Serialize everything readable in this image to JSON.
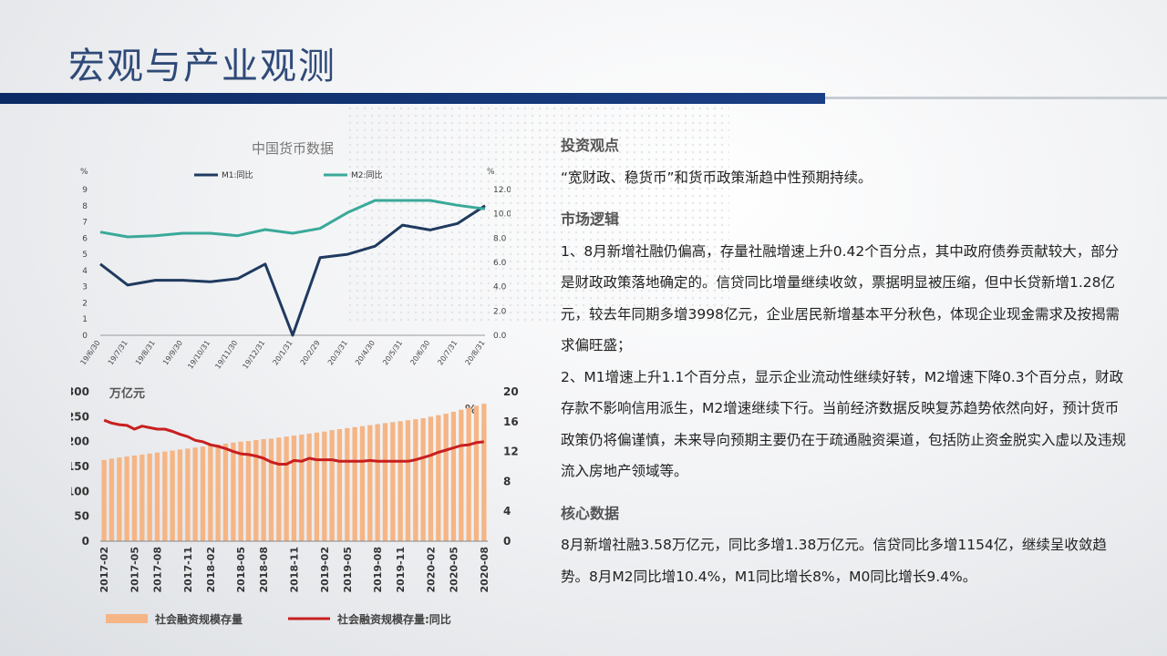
{
  "page": {
    "title": "宏观与产业观测"
  },
  "sections": [
    {
      "heading": "投资观点",
      "paragraphs": [
        "“宽财政、稳货币”和货币政策渐趋中性预期持续。"
      ]
    },
    {
      "heading": "市场逻辑",
      "paragraphs": [
        "1、8月新增社融仍偏高，存量社融增速上升0.42个百分点，其中政府债券贡献较大，部分是财政政策落地确定的。信贷同比增量继续收敛，票据明显被压缩，但中长贷新增1.28亿元，较去年同期多增3998亿元，企业居民新增基本平分秋色，体现企业现金需求及按揭需求偏旺盛；",
        "2、M1增速上升1.1个百分点，显示企业流动性继续好转，M2增速下降0.3个百分点，财政存款不影响信用派生，M2增速继续下行。当前经济数据反映复苏趋势依然向好，预计货币政策仍将偏谨慎，未来导向预期主要仍在于疏通融资渠道，包括防止资金脱实入虚以及违规流入房地产领域等。"
      ]
    },
    {
      "heading": "核心数据",
      "paragraphs": [
        "8月新增社融3.58万亿元，同比多增1.38万亿元。信贷同比多增1154亿，继续呈收敛趋势。8月M2同比增10.4%，M1同比增长8%，M0同比增长9.4%。"
      ]
    }
  ],
  "chart_data": [
    {
      "type": "line",
      "title": "中国货币数据",
      "left_unit": "%",
      "right_unit": "%",
      "categories": [
        "19/6/30",
        "19/7/31",
        "19/8/31",
        "19/9/30",
        "19/10/31",
        "19/11/30",
        "19/12/31",
        "20/1/31",
        "20/2/29",
        "20/3/31",
        "20/4/30",
        "20/5/31",
        "20/6/30",
        "20/7/31",
        "20/8/31"
      ],
      "y_left": {
        "min": 0,
        "max": 9,
        "ticks": [
          "0",
          "1",
          "2",
          "3",
          "4",
          "5",
          "6",
          "7",
          "8",
          "9"
        ]
      },
      "y_right": {
        "min": 0,
        "max": 12,
        "ticks": [
          "0.0",
          "2.0",
          "4.0",
          "6.0",
          "8.0",
          "10.0",
          "12.0"
        ]
      },
      "series": [
        {
          "name": "M1:同比",
          "axis": "left",
          "color": "#1f3a5f",
          "values": [
            4.4,
            3.1,
            3.4,
            3.4,
            3.3,
            3.5,
            4.4,
            0.0,
            4.8,
            5.0,
            5.5,
            6.8,
            6.5,
            6.9,
            8.0
          ]
        },
        {
          "name": "M2:同比",
          "axis": "right",
          "color": "#3aa99a",
          "values": [
            8.5,
            8.1,
            8.2,
            8.4,
            8.4,
            8.2,
            8.7,
            8.4,
            8.8,
            10.1,
            11.1,
            11.1,
            11.1,
            10.7,
            10.4
          ]
        }
      ],
      "legend": "top"
    },
    {
      "type": "bar",
      "left_unit": "万亿元",
      "right_unit": "%",
      "x_tick_labels": [
        "2017-02",
        "2017-05",
        "2017-08",
        "2017-11",
        "2018-02",
        "2018-05",
        "2018-08",
        "2018-11",
        "2019-02",
        "2019-05",
        "2019-08",
        "2019-11",
        "2020-02",
        "2020-05",
        "2020-08"
      ],
      "y_left": {
        "min": 0,
        "max": 300,
        "ticks": [
          "0",
          "50",
          "100",
          "150",
          "200",
          "250",
          "300"
        ]
      },
      "y_right": {
        "min": 0,
        "max": 20,
        "ticks": [
          "0",
          "4",
          "8",
          "12",
          "16",
          "20"
        ]
      },
      "series": [
        {
          "name": "社会融资规模存量",
          "type": "bar",
          "color": "#f5b585",
          "values": [
            163,
            166,
            168,
            170,
            172,
            174,
            176,
            178,
            180,
            182,
            184,
            186,
            188,
            190,
            192,
            194,
            196,
            198,
            200,
            201,
            203,
            205,
            206,
            208,
            210,
            212,
            214,
            216,
            218,
            220,
            223,
            225,
            227,
            229,
            231,
            233,
            235,
            237,
            239,
            241,
            243,
            245,
            247,
            250,
            253,
            256,
            260,
            264,
            268,
            272,
            276
          ]
        },
        {
          "name": "社会融资规模存量:同比",
          "type": "line",
          "color": "#c91f1f",
          "values": [
            16.2,
            15.8,
            15.6,
            15.5,
            15.0,
            15.4,
            15.2,
            15.0,
            15.0,
            14.7,
            14.3,
            14.0,
            13.5,
            13.3,
            12.9,
            12.7,
            12.4,
            12.0,
            11.7,
            11.6,
            11.4,
            11.1,
            10.6,
            10.3,
            10.3,
            10.8,
            10.7,
            11.1,
            10.9,
            10.9,
            10.9,
            10.7,
            10.7,
            10.7,
            10.7,
            10.8,
            10.7,
            10.7,
            10.7,
            10.7,
            10.7,
            10.9,
            11.2,
            11.5,
            11.9,
            12.2,
            12.5,
            12.8,
            12.9,
            13.2,
            13.3
          ]
        }
      ],
      "legend": "bottom"
    }
  ]
}
